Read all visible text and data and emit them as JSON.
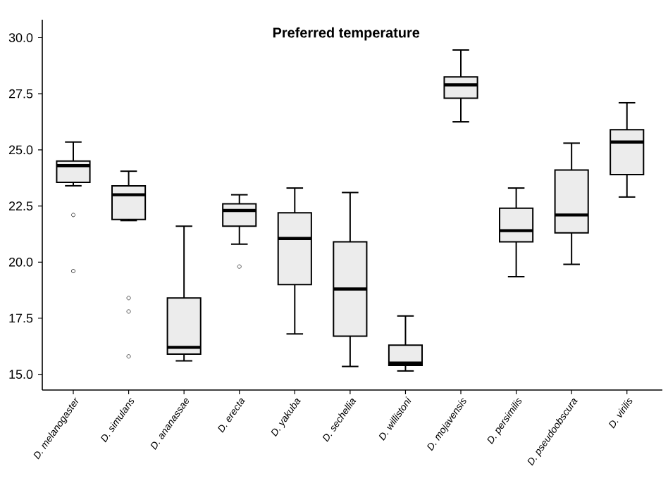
{
  "chart_data": {
    "type": "box",
    "title": "Preferred temperature",
    "categories": [
      "D. melanogaster",
      "D. simulans",
      "D. ananassae",
      "D. erecta",
      "D. yakuba",
      "D. sechellia",
      "D. willistoni",
      "D. mojavensis",
      "D. persimilis",
      "D. pseudoobscura",
      "D. virilis"
    ],
    "boxes": [
      {
        "low": 23.4,
        "q1": 23.55,
        "median": 24.3,
        "q3": 24.5,
        "high": 25.35,
        "outliers": [
          22.1,
          19.6
        ]
      },
      {
        "low": 21.85,
        "q1": 21.9,
        "median": 23.0,
        "q3": 23.4,
        "high": 24.05,
        "outliers": [
          18.4,
          17.8,
          15.8
        ]
      },
      {
        "low": 15.6,
        "q1": 15.9,
        "median": 16.2,
        "q3": 18.4,
        "high": 21.6
      },
      {
        "low": 20.8,
        "q1": 21.6,
        "median": 22.3,
        "q3": 22.6,
        "high": 23.0,
        "outliers": [
          19.8
        ]
      },
      {
        "low": 16.8,
        "q1": 19.0,
        "median": 21.05,
        "q3": 22.2,
        "high": 23.3
      },
      {
        "low": 15.35,
        "q1": 16.7,
        "median": 18.8,
        "q3": 20.9,
        "high": 23.1
      },
      {
        "low": 15.15,
        "q1": 15.4,
        "median": 15.5,
        "q3": 16.3,
        "high": 17.6
      },
      {
        "low": 26.25,
        "q1": 27.3,
        "median": 27.9,
        "q3": 28.25,
        "high": 29.45
      },
      {
        "low": 19.35,
        "q1": 20.9,
        "median": 21.4,
        "q3": 22.4,
        "high": 23.3
      },
      {
        "low": 19.9,
        "q1": 21.3,
        "median": 22.1,
        "q3": 24.1,
        "high": 25.3
      },
      {
        "low": 22.9,
        "q1": 23.9,
        "median": 25.35,
        "q3": 25.9,
        "high": 27.1
      }
    ],
    "color": "#ececec",
    "ylim": [
      14.3,
      30.8
    ],
    "yticks": [
      {
        "value": 15,
        "label": "15.0"
      },
      {
        "value": 17.5,
        "label": "17.5"
      },
      {
        "value": 20,
        "label": "20.0"
      },
      {
        "value": 22.5,
        "label": "22.5"
      },
      {
        "value": 25,
        "label": "25.0"
      },
      {
        "value": 27.5,
        "label": "27.5"
      },
      {
        "value": 30,
        "label": "30.0"
      }
    ],
    "grid": false,
    "marker": "circle"
  }
}
